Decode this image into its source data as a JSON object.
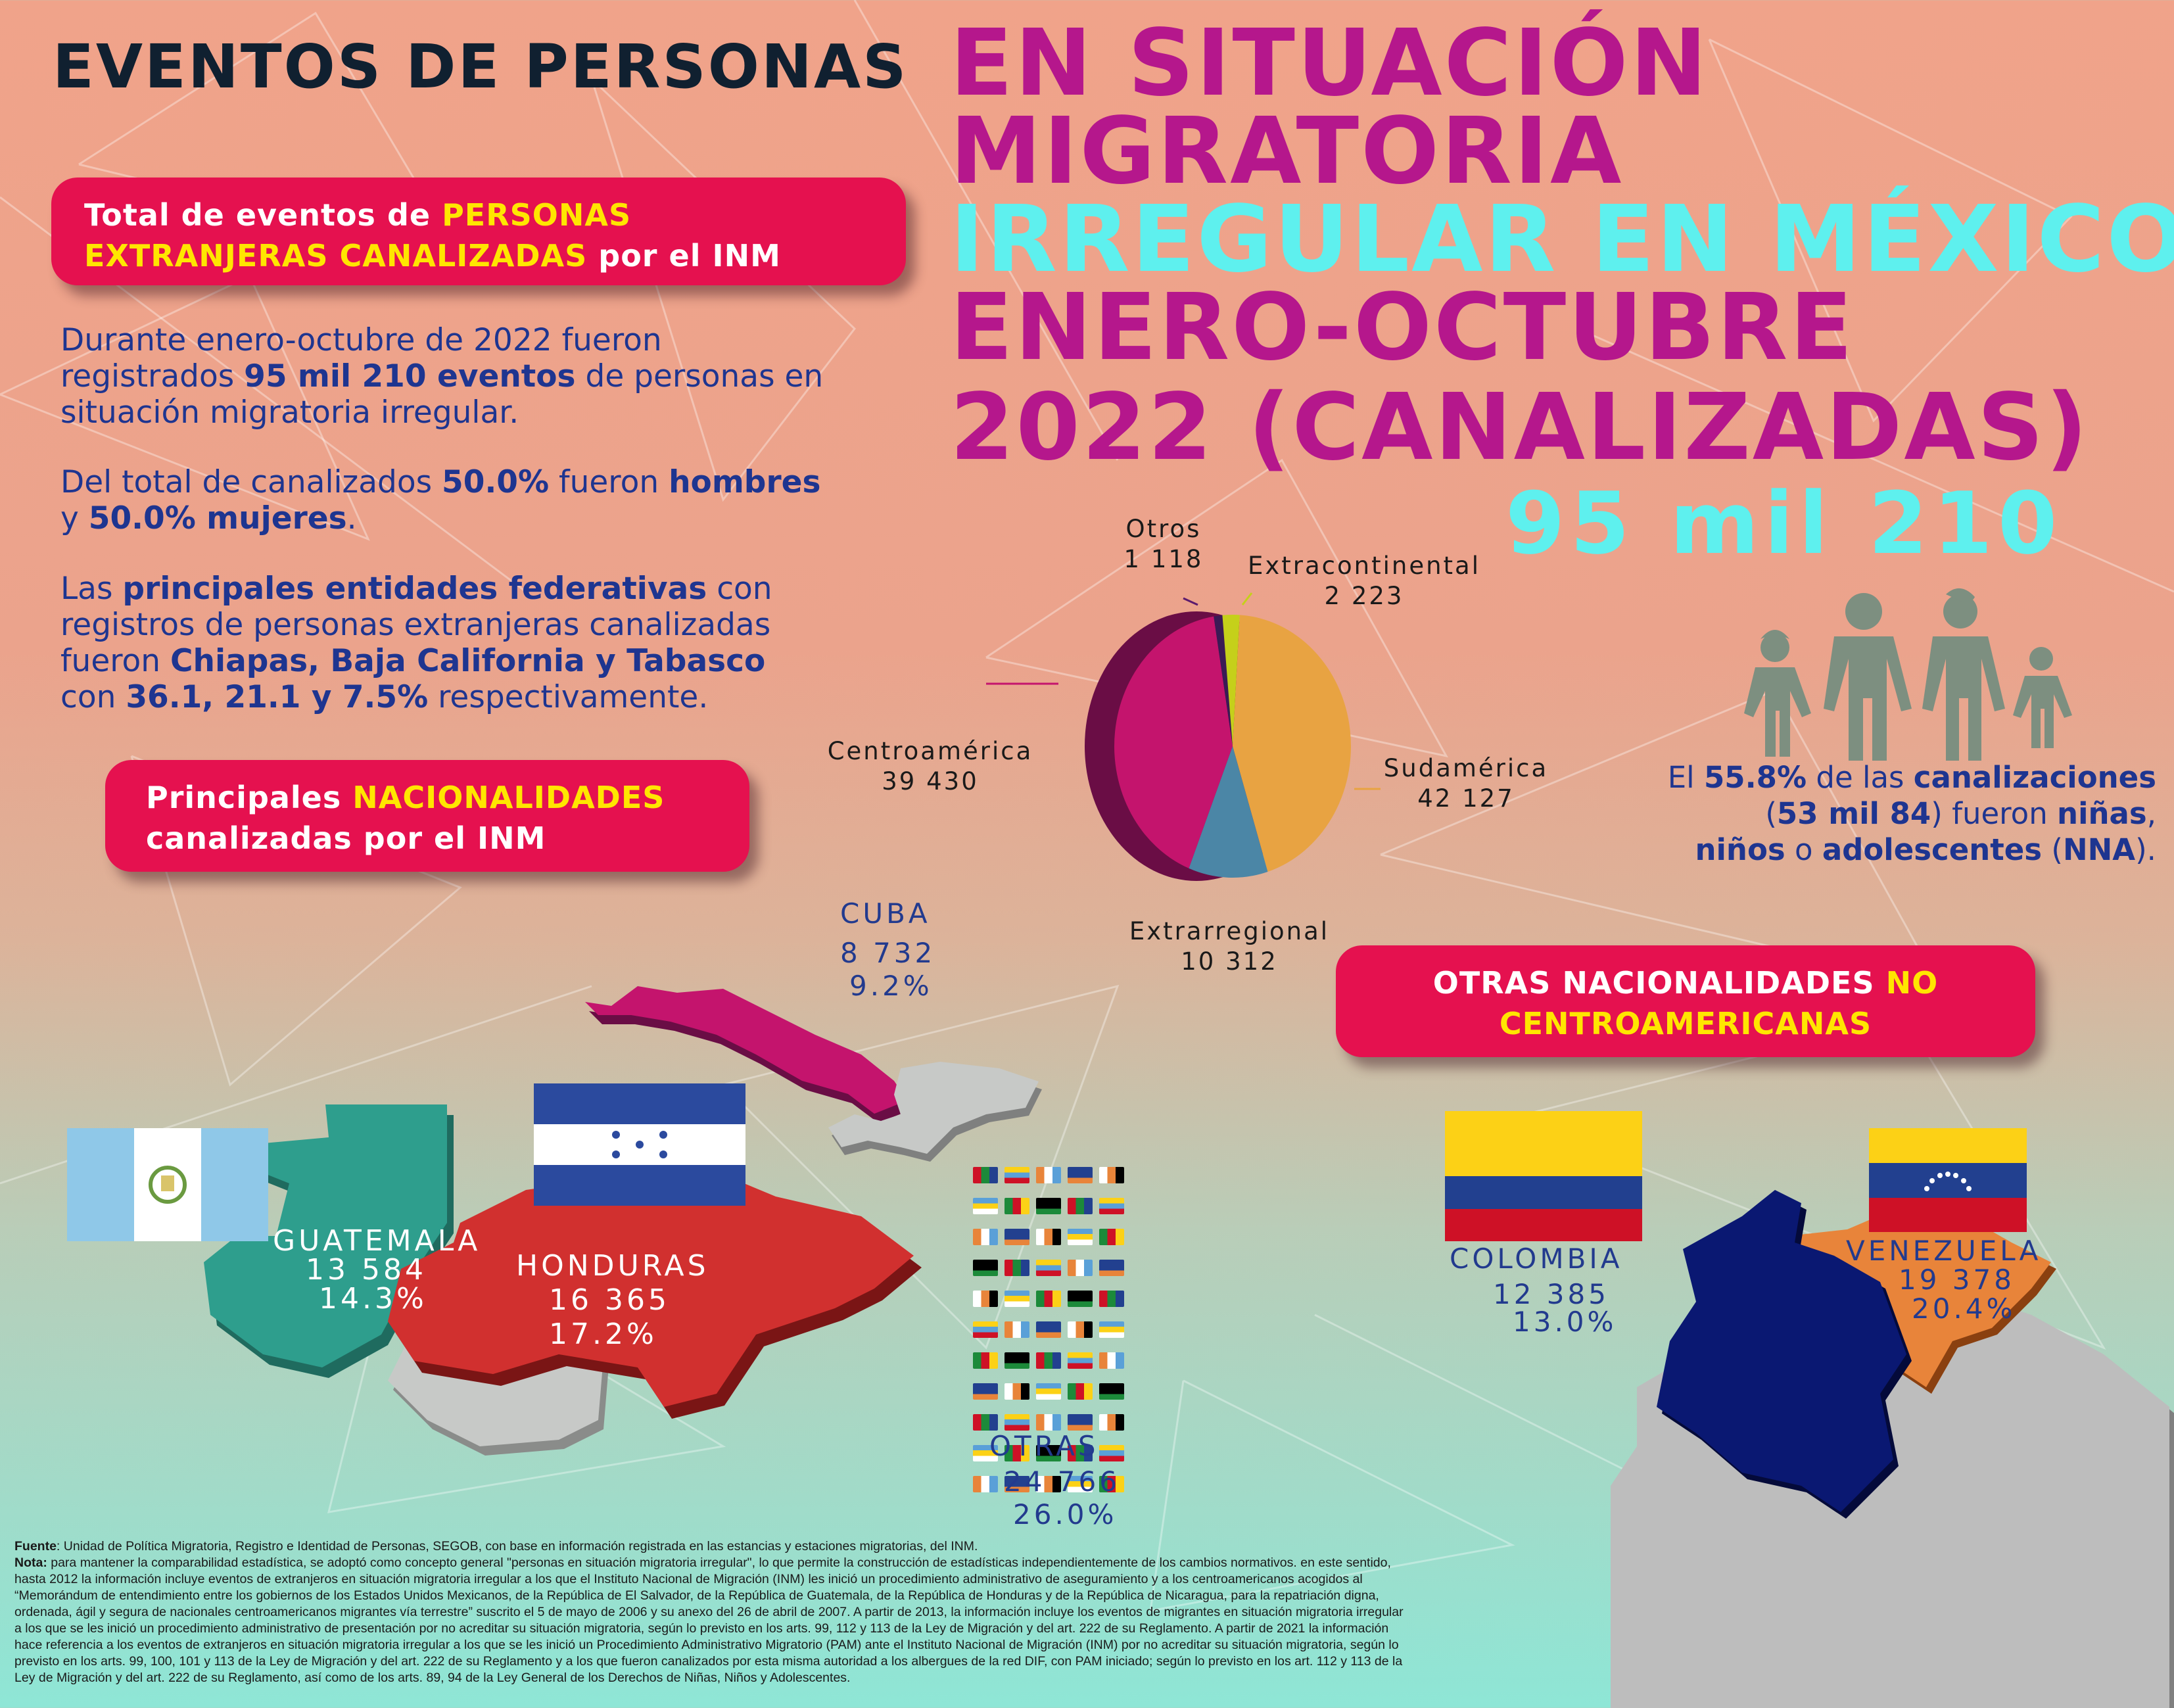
{
  "title": {
    "left": "EVENTOS DE PERSONAS",
    "line1": "EN SITUACIÓN",
    "line2": "MIGRATORIA",
    "line3": "IRREGULAR EN MÉXICO",
    "line4": "ENERO-OCTUBRE",
    "line5": "2022 (CANALIZADAS)",
    "total": "95 mil 210"
  },
  "box_total": {
    "a": "Total de eventos de ",
    "b": "PERSONAS",
    "c": "EXTRANJERAS CANALIZADAS",
    "d": " por el ",
    "e": "INM"
  },
  "paragraphs": {
    "p1a": "Durante enero-octubre de 2022 fueron",
    "p1b": "registrados ",
    "p1c": "95 mil 210 eventos",
    "p1d": " de personas en",
    "p1e": "situación migratoria irregular.",
    "p2a": "Del total de canalizados ",
    "p2b": "50.0%",
    "p2c": " fueron ",
    "p2d": "hombres",
    "p2e": "y ",
    "p2f": "50.0% mujeres",
    "p2g": ".",
    "p3a": "Las ",
    "p3b": "principales entidades federativas",
    "p3c": " con",
    "p3d": "registros de personas extranjeras canalizadas",
    "p3e": "fueron ",
    "p3f": "Chiapas, Baja California y Tabasco",
    "p3g": "con ",
    "p3h": "36.1, 21.1 y 7.5%",
    "p3i": " respectivamente."
  },
  "box_nac": {
    "a": "Principales ",
    "b": "NACIONALIDADES",
    "c": "canalizadas por el ",
    "d": "INM"
  },
  "box_otras": {
    "a": "OTRAS NACIONALIDADES ",
    "b": "NO",
    "c": "CENTROAMERICANAS"
  },
  "nna": {
    "a": "El ",
    "b": "55.8%",
    "c": " de las ",
    "d": "canalizaciones",
    "e": "(",
    "f": "53 mil 84",
    "g": ") fueron ",
    "h": "niñas",
    "i": ",",
    "j": "niños",
    "k": " o ",
    "l": "adolescentes",
    "m": " (",
    "n": "NNA",
    "o": ")."
  },
  "chart_data": {
    "type": "pie",
    "slices": [
      {
        "label": "Sudamérica",
        "value": 42127,
        "display": "42 127",
        "color": "#e8a342"
      },
      {
        "label": "Extrarregional",
        "value": 10312,
        "display": "10 312",
        "color": "#4b86a6"
      },
      {
        "label": "Centroamérica",
        "value": 39430,
        "display": "39 430",
        "color": "#c4146d"
      },
      {
        "label": "Otros",
        "value": 1118,
        "display": "1 118",
        "color": "#3a1a55"
      },
      {
        "label": "Extracontinental",
        "value": 2223,
        "display": "2 223",
        "color": "#c5d01a"
      }
    ]
  },
  "countries": {
    "cuba": {
      "name": "CUBA",
      "value": "8 732",
      "pct": "9.2%"
    },
    "guatemala": {
      "name": "GUATEMALA",
      "value": "13 584",
      "pct": "14.3%"
    },
    "honduras": {
      "name": "HONDURAS",
      "value": "16 365",
      "pct": "17.2%"
    },
    "otras": {
      "name": "OTRAS",
      "value": "24 766",
      "pct": "26.0%"
    },
    "colombia": {
      "name": "COLOMBIA",
      "value": "12 385",
      "pct": "13.0%"
    },
    "venezuela": {
      "name": "VENEZUELA",
      "value": "19 378",
      "pct": "20.4%"
    }
  },
  "footnote": {
    "fuente_label": "Fuente",
    "fuente": ": Unidad de Política Migratoria, Registro e Identidad de Personas, SEGOB, con base en información registrada en las estancias y estaciones migratorias, del INM.",
    "nota_label": "Nota:",
    "nota": " para mantener la comparabilidad estadística, se adoptó como concepto general \"personas en situación migratoria irregular\", lo que permite la construcción de estadísticas independientemente de los cambios normativos. en este sentido,  hasta 2012 la información incluye eventos de extranjeros en situación migratoria irregular a los que el Instituto Nacional de Migración (INM) les inició un procedimiento administrativo de aseguramiento y a los centroamericanos acogidos al “Memorándum de entendimiento entre los gobiernos de los Estados Unidos Mexicanos, de la República de El Salvador, de la República de Guatemala, de la República de Honduras y de la República de Nicaragua, para la repatriación digna, ordenada, ágil y segura de nacionales centroamericanos migrantes vía terrestre” suscrito el 5 de mayo de 2006 y su anexo del 26 de abril de 2007. A partir de 2013, la información incluye los eventos de migrantes en situación migratoria irregular a los que se les inició un procedimiento administrativo de presentación por no acreditar su situación migratoria, según lo previsto en los arts. 99, 112 y 113 de la Ley de Migración y del art. 222 de su Reglamento. A partir de 2021 la información hace referencia a los eventos de extranjeros en situación migratoria irregular a los que se les inició un Procedimiento Administrativo Migratorio (PAM) ante el Instituto Nacional de Migración (INM) por no acreditar su situación migratoria, según lo previsto en los arts. 99, 100, 101 y 113 de la Ley de Migración y del art. 222 de su Reglamento y a los que fueron canalizados por esta misma autoridad a los albergues de la red DIF, con PAM iniciado; según lo previsto en los art. 112 y 113 de la Ley de Migración y del art. 222 de su Reglamento, así como de los arts. 89, 94 de la Ley General de los Derechos de Niñas, Niños y Adolescentes."
  }
}
